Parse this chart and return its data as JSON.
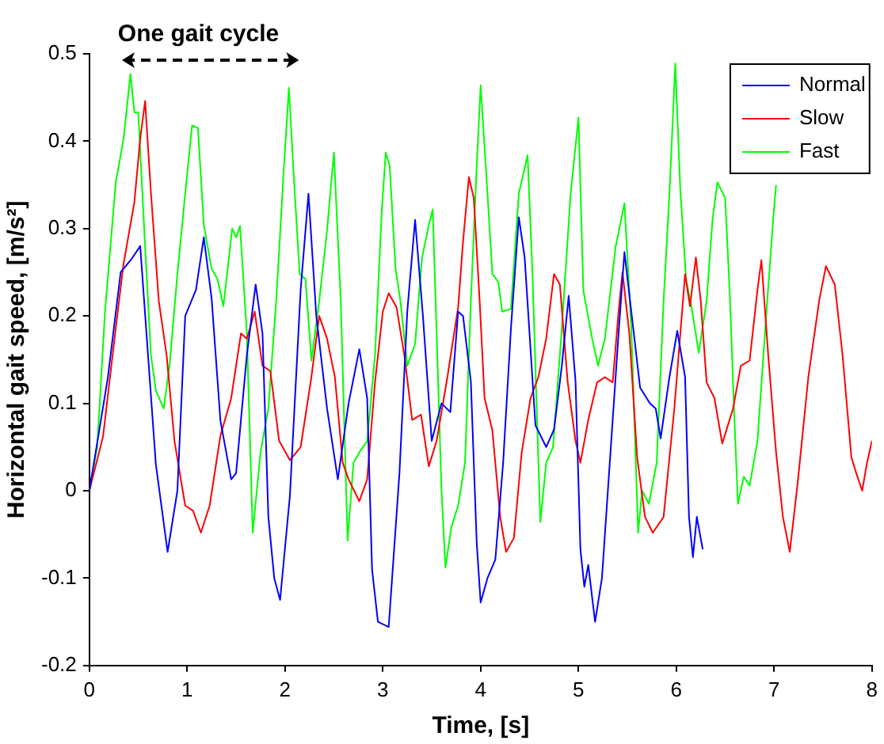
{
  "chart_data": {
    "type": "line",
    "xlabel": "Time, [s]",
    "ylabel": "Horizontal gait speed, [m/s²]",
    "annotations": [
      "One gait cycle"
    ],
    "xlim": [
      0,
      8
    ],
    "xticks": [
      0,
      1,
      2,
      3,
      4,
      5,
      6,
      7,
      8
    ],
    "ylim": [
      -0.2,
      0.5
    ],
    "yticks": [
      -0.2,
      -0.1,
      0,
      0.1,
      0.2,
      0.3,
      0.4,
      0.5
    ],
    "grid": false,
    "legend": "top right",
    "marker": "none",
    "line_style": "solid",
    "series": [
      {
        "name": "Normal",
        "color": "#0000ff",
        "x": [
          0,
          0.19,
          0.32,
          0.43,
          0.52,
          0.6,
          0.68,
          0.8,
          0.9,
          0.98,
          1.09,
          1.17,
          1.25,
          1.34,
          1.45,
          1.5,
          1.61,
          1.7,
          1.77,
          1.83,
          1.89,
          1.95,
          2.05,
          2.16,
          2.24,
          2.32,
          2.43,
          2.54,
          2.65,
          2.76,
          2.84,
          2.89,
          2.95,
          3.06,
          3.17,
          3.25,
          3.33,
          3.41,
          3.5,
          3.6,
          3.69,
          3.77,
          3.82,
          3.9,
          3.96,
          4.0,
          4.07,
          4.15,
          4.23,
          4.31,
          4.39,
          4.45,
          4.56,
          4.67,
          4.75,
          4.83,
          4.9,
          4.97,
          5.02,
          5.06,
          5.1,
          5.17,
          5.24,
          5.32,
          5.41,
          5.47,
          5.54,
          5.63,
          5.73,
          5.79,
          5.84,
          5.93,
          6.01,
          6.09,
          6.13,
          6.17,
          6.21,
          6.27
        ],
        "values": [
          0,
          0.13,
          0.25,
          0.265,
          0.28,
          0.155,
          0.03,
          -0.07,
          0,
          0.2,
          0.23,
          0.29,
          0.22,
          0.08,
          0.013,
          0.02,
          0.155,
          0.236,
          0.18,
          -0.03,
          -0.1,
          -0.125,
          -0.006,
          0.23,
          0.34,
          0.2,
          0.094,
          0.013,
          0.1,
          0.162,
          0.106,
          -0.09,
          -0.15,
          -0.156,
          0.02,
          0.205,
          0.31,
          0.2,
          0.057,
          0.1,
          0.09,
          0.205,
          0.2,
          0.125,
          -0.06,
          -0.128,
          -0.1,
          -0.079,
          0.032,
          0.186,
          0.313,
          0.267,
          0.075,
          0.05,
          0.07,
          0.143,
          0.223,
          0.125,
          -0.067,
          -0.11,
          -0.085,
          -0.15,
          -0.1,
          0.032,
          0.18,
          0.273,
          0.205,
          0.118,
          0.1,
          0.094,
          0.06,
          0.13,
          0.183,
          0.13,
          -0.03,
          -0.076,
          -0.03,
          -0.067
        ]
      },
      {
        "name": "Slow",
        "color": "#ff0000",
        "x": [
          0,
          0.14,
          0.27,
          0.35,
          0.46,
          0.52,
          0.57,
          0.63,
          0.71,
          0.79,
          0.87,
          0.98,
          1.06,
          1.14,
          1.23,
          1.34,
          1.45,
          1.55,
          1.61,
          1.69,
          1.77,
          1.85,
          1.94,
          2.05,
          2.16,
          2.27,
          2.35,
          2.43,
          2.51,
          2.59,
          2.65,
          2.76,
          2.84,
          2.92,
          3.0,
          3.06,
          3.14,
          3.22,
          3.3,
          3.39,
          3.47,
          3.55,
          3.66,
          3.77,
          3.82,
          3.88,
          3.93,
          3.99,
          4.04,
          4.12,
          4.2,
          4.26,
          4.34,
          4.42,
          4.51,
          4.59,
          4.67,
          4.75,
          4.81,
          4.89,
          4.97,
          5.02,
          5.1,
          5.19,
          5.27,
          5.35,
          5.41,
          5.45,
          5.52,
          5.6,
          5.68,
          5.76,
          5.87,
          5.98,
          6.09,
          6.14,
          6.2,
          6.25,
          6.31,
          6.39,
          6.47,
          6.58,
          6.66,
          6.75,
          6.83,
          6.87,
          6.94,
          7.02,
          7.09,
          7.16,
          7.24,
          7.35,
          7.46,
          7.53,
          7.62,
          7.7,
          7.79,
          7.84,
          7.9,
          7.95,
          8.0
        ],
        "values": [
          0,
          0.062,
          0.186,
          0.26,
          0.33,
          0.403,
          0.446,
          0.34,
          0.217,
          0.155,
          0.057,
          -0.017,
          -0.023,
          -0.048,
          -0.017,
          0.063,
          0.106,
          0.18,
          0.174,
          0.205,
          0.143,
          0.137,
          0.057,
          0.035,
          0.05,
          0.13,
          0.2,
          0.174,
          0.13,
          0.032,
          0.013,
          -0.012,
          0.013,
          0.124,
          0.205,
          0.226,
          0.21,
          0.155,
          0.081,
          0.087,
          0.028,
          0.057,
          0.13,
          0.21,
          0.285,
          0.359,
          0.335,
          0.217,
          0.106,
          0.069,
          -0.03,
          -0.07,
          -0.054,
          0.044,
          0.106,
          0.13,
          0.174,
          0.248,
          0.236,
          0.124,
          0.057,
          0.032,
          0.081,
          0.124,
          0.13,
          0.124,
          0.205,
          0.25,
          0.18,
          0.038,
          -0.03,
          -0.048,
          -0.03,
          0.094,
          0.248,
          0.211,
          0.267,
          0.217,
          0.124,
          0.106,
          0.054,
          0.094,
          0.143,
          0.149,
          0.23,
          0.264,
          0.155,
          0.044,
          -0.03,
          -0.07,
          0.008,
          0.13,
          0.217,
          0.257,
          0.236,
          0.155,
          0.038,
          0.02,
          0,
          0.032,
          0.057
        ]
      },
      {
        "name": "Fast",
        "color": "#00ff00",
        "x": [
          0,
          0.08,
          0.16,
          0.27,
          0.35,
          0.42,
          0.46,
          0.5,
          0.57,
          0.63,
          0.68,
          0.76,
          0.82,
          0.9,
          0.98,
          1.05,
          1.11,
          1.17,
          1.25,
          1.31,
          1.37,
          1.42,
          1.46,
          1.5,
          1.54,
          1.61,
          1.67,
          1.75,
          1.83,
          1.91,
          1.99,
          2.04,
          2.09,
          2.15,
          2.21,
          2.27,
          2.35,
          2.43,
          2.5,
          2.57,
          2.64,
          2.7,
          2.76,
          2.84,
          2.92,
          2.99,
          3.03,
          3.07,
          3.13,
          3.18,
          3.25,
          3.33,
          3.4,
          3.47,
          3.51,
          3.55,
          3.6,
          3.64,
          3.7,
          3.77,
          3.84,
          3.9,
          3.96,
          4.0,
          4.07,
          4.12,
          4.18,
          4.22,
          4.31,
          4.39,
          4.48,
          4.53,
          4.61,
          4.67,
          4.74,
          4.83,
          4.92,
          5.0,
          5.05,
          5.14,
          5.2,
          5.27,
          5.38,
          5.47,
          5.54,
          5.61,
          5.65,
          5.72,
          5.8,
          5.87,
          5.93,
          5.99,
          6.04,
          6.1,
          6.15,
          6.23,
          6.31,
          6.37,
          6.42,
          6.5,
          6.55,
          6.59,
          6.63,
          6.69,
          6.75,
          6.83,
          6.91,
          6.99,
          7.02
        ],
        "values": [
          0,
          0.05,
          0.205,
          0.353,
          0.403,
          0.477,
          0.433,
          0.433,
          0.279,
          0.155,
          0.115,
          0.094,
          0.143,
          0.248,
          0.34,
          0.418,
          0.415,
          0.304,
          0.254,
          0.242,
          0.211,
          0.26,
          0.3,
          0.29,
          0.303,
          0.18,
          -0.048,
          0.044,
          0.094,
          0.217,
          0.372,
          0.461,
          0.359,
          0.248,
          0.242,
          0.149,
          0.217,
          0.298,
          0.387,
          0.217,
          -0.057,
          0.032,
          0.044,
          0.057,
          0.155,
          0.322,
          0.387,
          0.372,
          0.254,
          0.217,
          0.143,
          0.168,
          0.266,
          0.304,
          0.322,
          0.18,
          0,
          -0.088,
          -0.042,
          -0.017,
          0.032,
          0.217,
          0.372,
          0.464,
          0.34,
          0.248,
          0.239,
          0.205,
          0.208,
          0.34,
          0.384,
          0.248,
          -0.036,
          0.032,
          0.05,
          0.186,
          0.34,
          0.427,
          0.229,
          0.174,
          0.143,
          0.174,
          0.279,
          0.329,
          0.186,
          -0.048,
          0,
          -0.015,
          0.032,
          0.217,
          0.34,
          0.489,
          0.347,
          0.242,
          0.214,
          0.158,
          0.217,
          0.31,
          0.353,
          0.335,
          0.217,
          0.094,
          -0.015,
          0.016,
          0.006,
          0.057,
          0.186,
          0.31,
          0.35
        ]
      }
    ]
  }
}
